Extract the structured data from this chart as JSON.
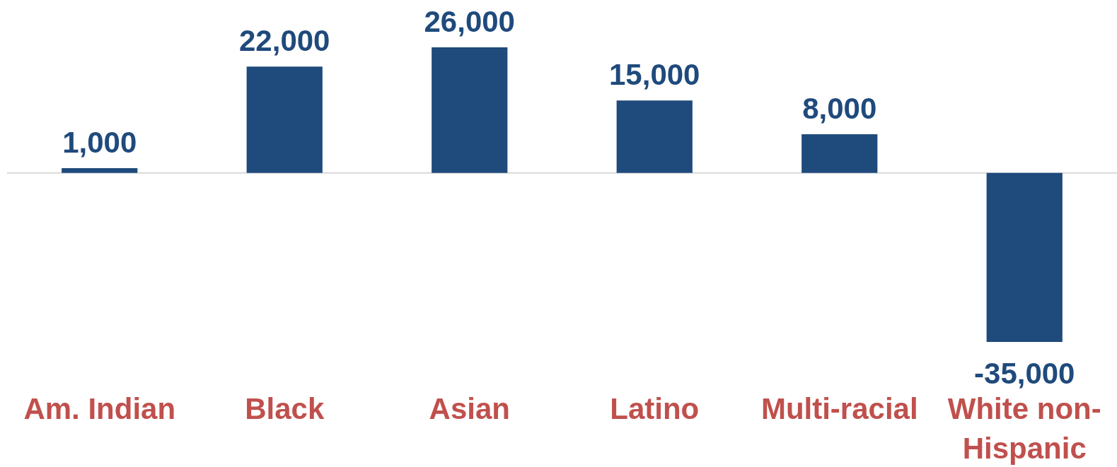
{
  "chart_data": {
    "type": "bar",
    "categories": [
      "Am. Indian",
      "Black",
      "Asian",
      "Latino",
      "Multi-racial",
      "White non-Hispanic"
    ],
    "values": [
      1000,
      22000,
      26000,
      15000,
      8000,
      -35000
    ],
    "value_labels": [
      "1,000",
      "22,000",
      "26,000",
      "15,000",
      "8,000",
      "-35,000"
    ],
    "color": "#1f4a7c"
  }
}
